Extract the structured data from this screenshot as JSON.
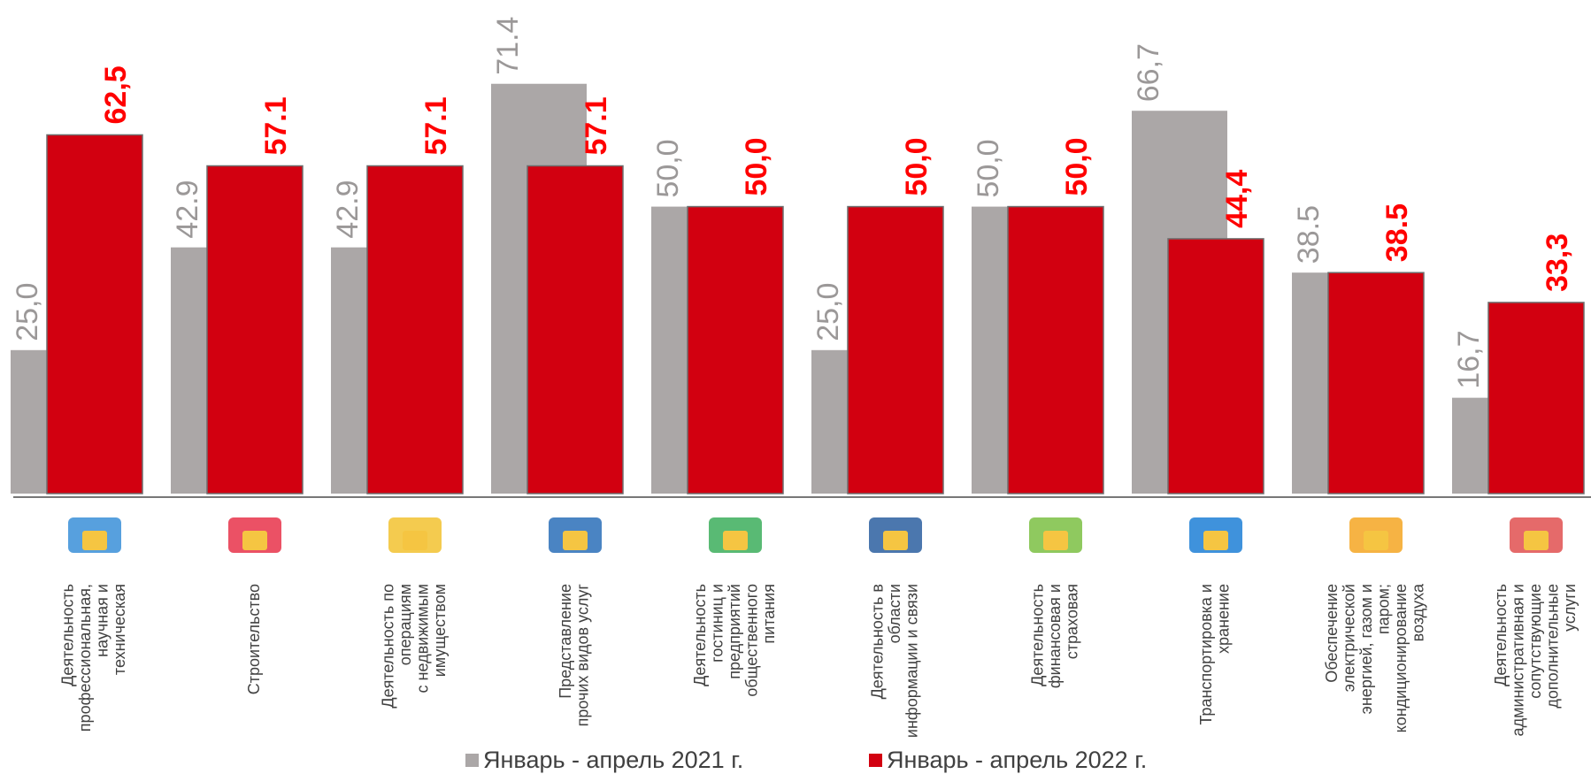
{
  "chart_data": {
    "type": "bar",
    "categories": [
      [
        "Деятельность",
        "профессиональная,",
        "научная и",
        "техническая"
      ],
      [
        "Строительство"
      ],
      [
        "Деятельность по",
        "операциям",
        "с недвижимым",
        "имуществом"
      ],
      [
        "Представление",
        "прочих видов услуг"
      ],
      [
        "Деятельность",
        "гостиниц и",
        "предприятий",
        "общественного",
        "питания"
      ],
      [
        "Деятельность в",
        "области",
        "информации и связи"
      ],
      [
        "Деятельность",
        "финансовая и",
        "страховая"
      ],
      [
        "Транспортировка и",
        "хранение"
      ],
      [
        "Обеспечение",
        "электрической",
        "энергией, газом и",
        "паром;",
        "кондиционирование",
        "воздуха"
      ],
      [
        "Деятельность",
        "административная и",
        "сопутствующие",
        "дополнительные",
        "услуги"
      ]
    ],
    "series": [
      {
        "name": "Январь - апрель 2021 г.",
        "color": "#aba7a7",
        "values": [
          25.0,
          42.9,
          42.9,
          71.4,
          50.0,
          25.0,
          50.0,
          66.7,
          38.5,
          16.7
        ],
        "value_labels": [
          "25,0",
          "42.9",
          "42.9",
          "71.4",
          "50,0",
          "25,0",
          "50,0",
          "66,7",
          "38.5",
          "16,7"
        ]
      },
      {
        "name": "Январь - апрель  2022 г.",
        "color": "#d20010",
        "values": [
          62.5,
          57.1,
          57.1,
          57.1,
          50.0,
          50.0,
          50.0,
          44.4,
          38.5,
          33.3
        ],
        "value_labels": [
          "62,5",
          "57.1",
          "57.1",
          "57.1",
          "50,0",
          "50,0",
          "50,0",
          "44,4",
          "38.5",
          "33,3"
        ]
      }
    ],
    "ylim": [
      0,
      86
    ]
  }
}
